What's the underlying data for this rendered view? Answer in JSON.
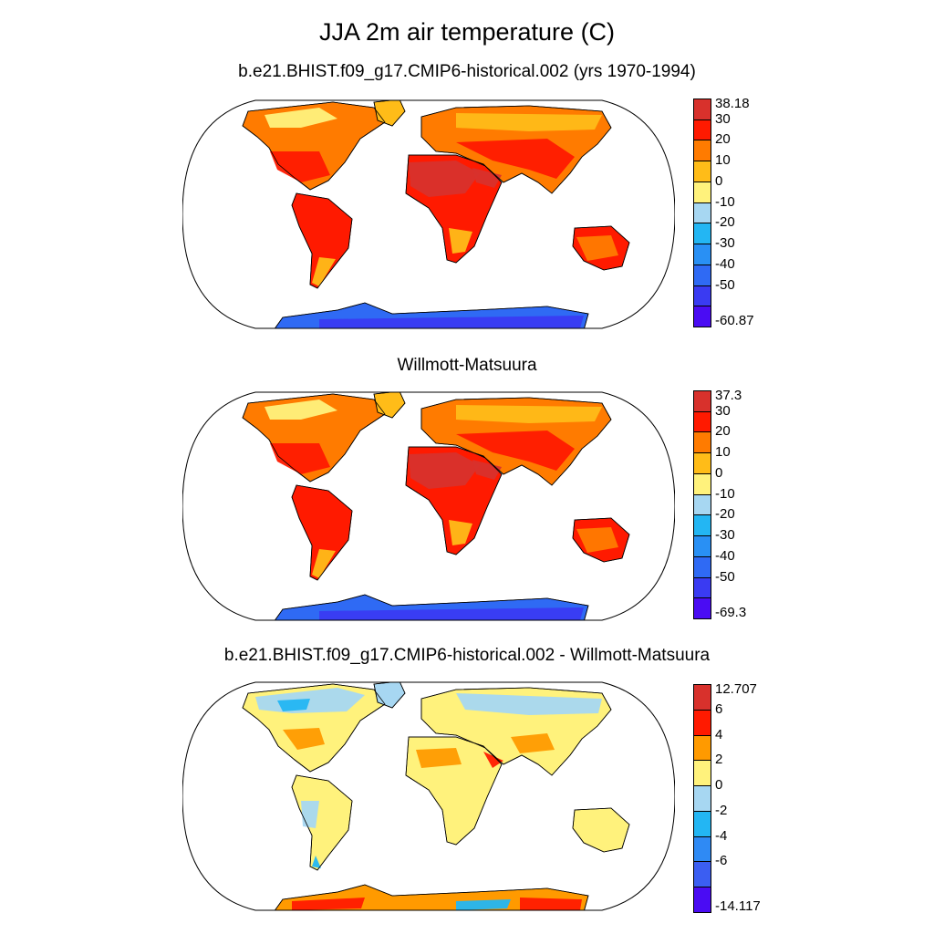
{
  "title": "JJA 2m air temperature (C)",
  "panels": [
    {
      "title": "b.e21.BHIST.f09_g17.CMIP6-historical.002 (yrs 1970-1994)",
      "kind": "temperature",
      "colorbar": {
        "labels": [
          "38.18",
          "30",
          "20",
          "10",
          "0",
          "-10",
          "-20",
          "-30",
          "-40",
          "-50",
          "-60.87"
        ],
        "colors": [
          "#d8312c",
          "#ff1a00",
          "#ff7b00",
          "#ffbc18",
          "#fff27c",
          "#a7d7f2",
          "#23b6f3",
          "#2990f4",
          "#2f6af4",
          "#3a3bf2",
          "#4a0cf3"
        ]
      }
    },
    {
      "title": "Willmott-Matsuura",
      "kind": "temperature",
      "colorbar": {
        "labels": [
          "37.3",
          "30",
          "20",
          "10",
          "0",
          "-10",
          "-20",
          "-30",
          "-40",
          "-50",
          "-69.3"
        ],
        "colors": [
          "#d8312c",
          "#ff1a00",
          "#ff7b00",
          "#ffbc18",
          "#fff27c",
          "#a7d7f2",
          "#23b6f3",
          "#2990f4",
          "#2f6af4",
          "#3a3bf2",
          "#4a0cf3"
        ]
      }
    },
    {
      "title": "b.e21.BHIST.f09_g17.CMIP6-historical.002 - Willmott-Matsuura",
      "kind": "difference",
      "colorbar": {
        "labels": [
          "12.707",
          "6",
          "4",
          "2",
          "0",
          "-2",
          "-4",
          "-6",
          "-14.117"
        ],
        "colors": [
          "#d8312c",
          "#ff1a00",
          "#ff9a00",
          "#fff27c",
          "#a7d7f2",
          "#23b6f3",
          "#2f8af4",
          "#3b5ef2",
          "#4a0cf3"
        ]
      }
    }
  ]
}
